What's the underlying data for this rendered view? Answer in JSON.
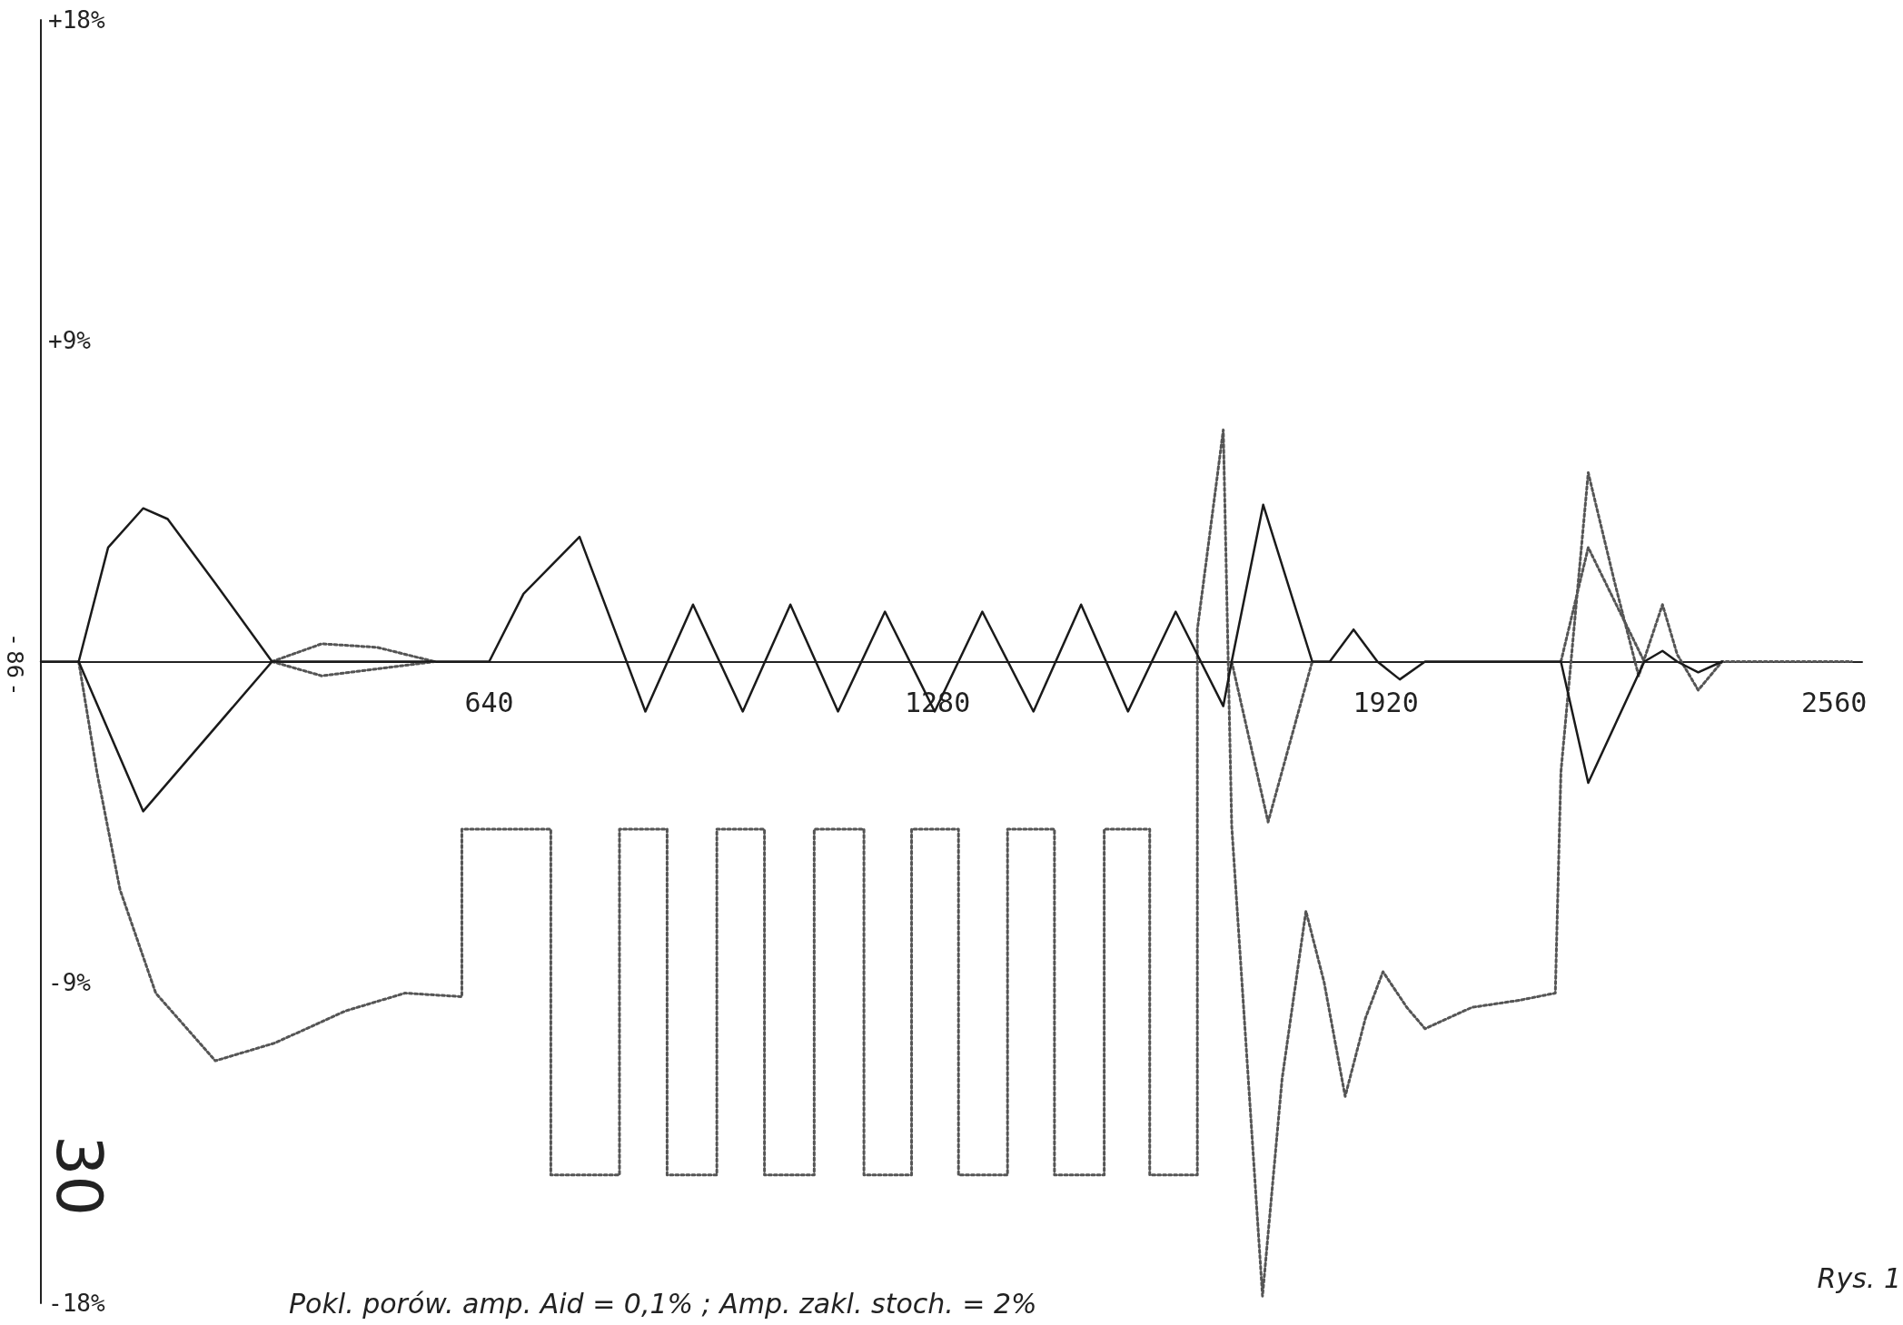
{
  "chart_data": {
    "type": "line",
    "annotations": [
      "Pokl. porów. amp. Aid = 0,1% ; Amp. zakl. stoch. = 2%",
      "Rys. 1",
      "30",
      "- 86 -"
    ],
    "xlim": [
      0,
      2600
    ],
    "xticks": [
      640,
      1280,
      1920,
      2560
    ],
    "ylim": [
      -18,
      18
    ],
    "yticks": [
      {
        "value": 18,
        "label": "+18%"
      },
      {
        "value": 9,
        "label": "+9%"
      },
      {
        "value": -9,
        "label": "-9%"
      },
      {
        "value": -18,
        "label": "-18%"
      }
    ],
    "grid": false,
    "marker": "none",
    "series": [
      {
        "color": "#1a1a1a",
        "line_style": "solid",
        "x": [
          0,
          54,
          96,
          146,
          181,
          249,
          330,
          640,
          689,
          769,
          863,
          931,
          1002,
          1070,
          1138,
          1205,
          1276,
          1344,
          1417,
          1485,
          1552,
          1620,
          1688,
          1700,
          1745,
          1815,
          1840,
          1874,
          1908,
          1940,
          1976,
          2170,
          2209,
          2289,
          2315,
          2336,
          2366,
          2400
        ],
        "values": [
          0,
          0,
          3.2,
          4.3,
          4.0,
          2.2,
          0,
          0,
          1.9,
          3.5,
          -1.4,
          1.6,
          -1.4,
          1.6,
          -1.4,
          1.4,
          -1.4,
          1.4,
          -1.4,
          1.6,
          -1.4,
          1.4,
          -1.25,
          0,
          4.4,
          0,
          0,
          0.9,
          0,
          -0.5,
          0,
          0,
          -3.4,
          0,
          0.3,
          0,
          -0.3,
          0
        ]
      },
      {
        "color": "#1a1a1a",
        "line_style": "solid",
        "x": [
          54,
          146,
          330
        ],
        "values": [
          0,
          -4.2,
          0
        ]
      },
      {
        "color": "#555555",
        "line_style": "dotted",
        "x": [
          54,
          80,
          113,
          164,
          249,
          334,
          435,
          520,
          601,
          601,
          728,
          728,
          826,
          826,
          894,
          894,
          965,
          965,
          1033,
          1033,
          1104,
          1104,
          1175,
          1175,
          1243,
          1243,
          1310,
          1310,
          1380,
          1380,
          1447,
          1447,
          1518,
          1518,
          1583,
          1583,
          1651,
          1651,
          1688,
          1700,
          1744,
          1772,
          1806,
          1832,
          1862,
          1891,
          1916,
          1950,
          1976,
          2043,
          2111,
          2162,
          2170,
          2209,
          2247,
          2281,
          2315,
          2336,
          2366,
          2400,
          2585
        ],
        "values": [
          0,
          -3.1,
          -6.4,
          -9.3,
          -11.2,
          -10.7,
          -9.8,
          -9.3,
          -9.4,
          -4.7,
          -4.7,
          -14.4,
          -14.4,
          -4.7,
          -4.7,
          -14.4,
          -14.4,
          -4.7,
          -4.7,
          -14.4,
          -14.4,
          -4.7,
          -4.7,
          -14.4,
          -14.4,
          -4.7,
          -4.7,
          -14.4,
          -14.4,
          -4.7,
          -4.7,
          -14.4,
          -14.4,
          -4.7,
          -4.7,
          -14.4,
          -14.4,
          0.9,
          6.5,
          -4.6,
          -17.8,
          -11.7,
          -7.0,
          -9.0,
          -12.2,
          -10.0,
          -8.7,
          -9.7,
          -10.3,
          -9.7,
          -9.5,
          -9.3,
          -3.1,
          5.3,
          2.2,
          -0.4,
          1.6,
          0.2,
          -0.8,
          0,
          0
        ]
      },
      {
        "color": "#555555",
        "line_style": "dotted",
        "x": [
          330,
          401,
          480,
          562,
          null,
          330,
          401,
          562,
          null,
          1700,
          1752,
          1815,
          null,
          2170,
          2209,
          2289
        ],
        "values": [
          0,
          0.5,
          0.4,
          0,
          null,
          0,
          -0.4,
          0,
          null,
          0,
          -4.5,
          0,
          null,
          0,
          3.2,
          0
        ]
      }
    ]
  }
}
